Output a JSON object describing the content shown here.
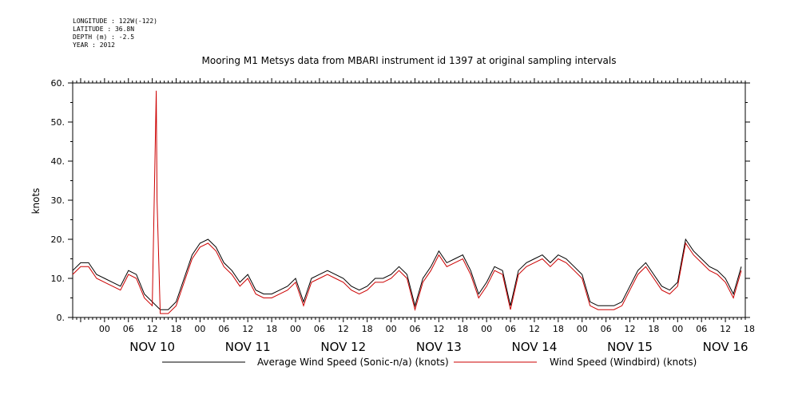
{
  "meta": {
    "longitude": "LONGITUDE : 122W(-122)",
    "latitude": "LATITUDE : 36.8N",
    "depth": "DEPTH (m) : -2.5",
    "year": "YEAR : 2012"
  },
  "chart_data": {
    "type": "line",
    "title": "Mooring M1 Metsys data from MBARI instrument id 1397 at original sampling intervals",
    "ylabel": "knots",
    "xlabel": "",
    "ylim": [
      0,
      60
    ],
    "yticks": [
      0,
      10,
      20,
      30,
      40,
      50,
      60
    ],
    "y_tick_labels": [
      "0.",
      "10.",
      "20.",
      "30.",
      "40.",
      "50.",
      "60."
    ],
    "x_unit": "hours since NOV 10 00:00, 2012",
    "xlim": [
      -8,
      161
    ],
    "hour_ticks": [
      "00",
      "06",
      "12",
      "18",
      "00",
      "06",
      "12",
      "18",
      "00",
      "06",
      "12",
      "18",
      "00",
      "06",
      "12",
      "18",
      "00",
      "06",
      "12",
      "18",
      "00",
      "06",
      "12",
      "18",
      "00",
      "06",
      "12",
      "18"
    ],
    "day_labels": [
      "NOV 10",
      "NOV 11",
      "NOV 12",
      "NOV 13",
      "NOV 14",
      "NOV 15",
      "NOV 16"
    ],
    "grid": false,
    "legend_position": "bottom",
    "series": [
      {
        "name": "Average Wind Speed (Sonic-n/a) (knots)",
        "color": "#000000",
        "x": [
          -8,
          -6,
          -4,
          -2,
          0,
          2,
          4,
          6,
          8,
          10,
          12,
          14,
          16,
          18,
          20,
          22,
          24,
          26,
          28,
          30,
          32,
          34,
          36,
          38,
          40,
          42,
          44,
          46,
          48,
          50,
          52,
          54,
          56,
          58,
          60,
          62,
          64,
          66,
          68,
          70,
          72,
          74,
          76,
          78,
          80,
          82,
          84,
          86,
          88,
          90,
          92,
          94,
          96,
          98,
          100,
          102,
          104,
          106,
          108,
          110,
          112,
          114,
          116,
          118,
          120,
          122,
          124,
          126,
          128,
          130,
          132,
          134,
          136,
          138,
          140,
          142,
          144,
          146,
          148,
          150,
          152,
          154,
          156,
          158,
          160
        ],
        "y": [
          12,
          14,
          14,
          11,
          10,
          9,
          8,
          12,
          11,
          6,
          4,
          2,
          2,
          4,
          10,
          16,
          19,
          20,
          18,
          14,
          12,
          9,
          11,
          7,
          6,
          6,
          7,
          8,
          10,
          4,
          10,
          11,
          12,
          11,
          10,
          8,
          7,
          8,
          10,
          10,
          11,
          13,
          11,
          3,
          10,
          13,
          17,
          14,
          15,
          16,
          12,
          6,
          9,
          13,
          12,
          3,
          12,
          14,
          15,
          16,
          14,
          16,
          15,
          13,
          11,
          4,
          3,
          3,
          3,
          4,
          8,
          12,
          14,
          11,
          8,
          7,
          9,
          20,
          17,
          15,
          13,
          12,
          10,
          6,
          13
        ],
        "sampling_interval_hours": 2
      },
      {
        "name": "Wind Speed (Windbird) (knots)",
        "color": "#cc0000",
        "x": [
          -8,
          -6,
          -4,
          -2,
          0,
          2,
          4,
          6,
          8,
          10,
          12,
          14,
          16,
          18,
          20,
          22,
          24,
          26,
          28,
          30,
          32,
          34,
          36,
          38,
          40,
          42,
          44,
          46,
          48,
          50,
          52,
          54,
          56,
          58,
          60,
          62,
          64,
          66,
          68,
          70,
          72,
          74,
          76,
          78,
          80,
          82,
          84,
          86,
          88,
          90,
          92,
          94,
          96,
          98,
          100,
          102,
          104,
          106,
          108,
          110,
          112,
          114,
          116,
          118,
          120,
          122,
          124,
          126,
          128,
          130,
          132,
          134,
          136,
          138,
          140,
          142,
          144,
          146,
          148,
          150,
          152,
          154,
          156,
          158,
          160
        ],
        "y": [
          11,
          13,
          13,
          10,
          9,
          8,
          7,
          11,
          10,
          5,
          3,
          1,
          1,
          3,
          9,
          15,
          18,
          19,
          17,
          13,
          11,
          8,
          10,
          6,
          5,
          5,
          6,
          7,
          9,
          3,
          9,
          10,
          11,
          10,
          9,
          7,
          6,
          7,
          9,
          9,
          10,
          12,
          10,
          2,
          9,
          12,
          16,
          13,
          14,
          15,
          11,
          5,
          8,
          12,
          11,
          2,
          11,
          13,
          14,
          15,
          13,
          15,
          14,
          12,
          10,
          3,
          2,
          2,
          2,
          3,
          7,
          11,
          13,
          10,
          7,
          6,
          8,
          19,
          16,
          14,
          12,
          11,
          9,
          5,
          12
        ],
        "spikes": [
          {
            "x": 13,
            "y": 58
          },
          {
            "x": 13.2,
            "y": 30
          }
        ],
        "sampling_interval_hours": 2
      }
    ]
  }
}
